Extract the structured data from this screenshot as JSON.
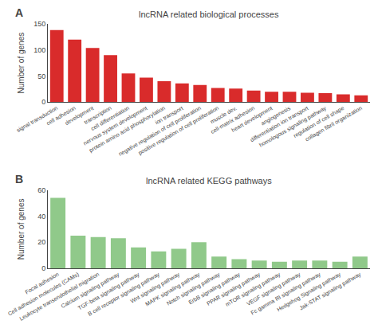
{
  "chart_data": [
    {
      "type": "bar",
      "title": "lncRNA related biological processes",
      "ylabel": "Number of genes",
      "categories": [
        "signal transduction",
        "cell adhesion",
        "development",
        "transcription",
        "cell differentiation",
        "nervous system development",
        "protein amino acid phosphorylation",
        "ion transport",
        "negative regulation of cell proliferation",
        "positive regulation of cell proliferation",
        "muscle dev.",
        "cell-matrix adhesion",
        "heart development",
        "angiogenesis",
        "differentiation ion transport",
        "homologous signaling pathway",
        "regulation of cell shape",
        "collagen fibril organization"
      ],
      "values": [
        138,
        120,
        104,
        90,
        55,
        47,
        40,
        36,
        33,
        27,
        26,
        22,
        20,
        20,
        18,
        17,
        15,
        13
      ],
      "color": "#d92b2b",
      "ylim": [
        0,
        150
      ],
      "yticks": [
        0,
        50,
        100,
        150
      ],
      "grid": false,
      "annotations": [
        "A"
      ]
    },
    {
      "type": "bar",
      "title": "lncRNA related KEGG pathways",
      "ylabel": "Number of genes",
      "categories": [
        "Focal adhesion",
        "Cell adhesion molecules (CAMs)",
        "Leukocyte transendothelial migration",
        "Calcium signaling pathway",
        "TGF-beta signaling pathway",
        "B cell receptor signaling pathway",
        "Wnt signaling pathway",
        "MAPK signaling pathway",
        "Notch signaling pathway",
        "ErbB signaling pathway",
        "PPAR signaling pathway",
        "mTOR signaling pathway",
        "VEGF signaling pathway",
        "Fc gamma RI signaling pathway",
        "Hedgehog Signaling pathway",
        "Jak-STAT signaling pathway"
      ],
      "values": [
        54,
        25,
        24,
        23,
        16,
        13,
        15,
        20,
        9,
        7,
        6,
        5,
        6,
        6,
        5,
        9
      ],
      "color": "#90c98a",
      "ylim": [
        0,
        60
      ],
      "yticks": [
        0,
        20,
        40,
        60
      ],
      "grid": false,
      "annotations": [
        "B"
      ]
    }
  ]
}
